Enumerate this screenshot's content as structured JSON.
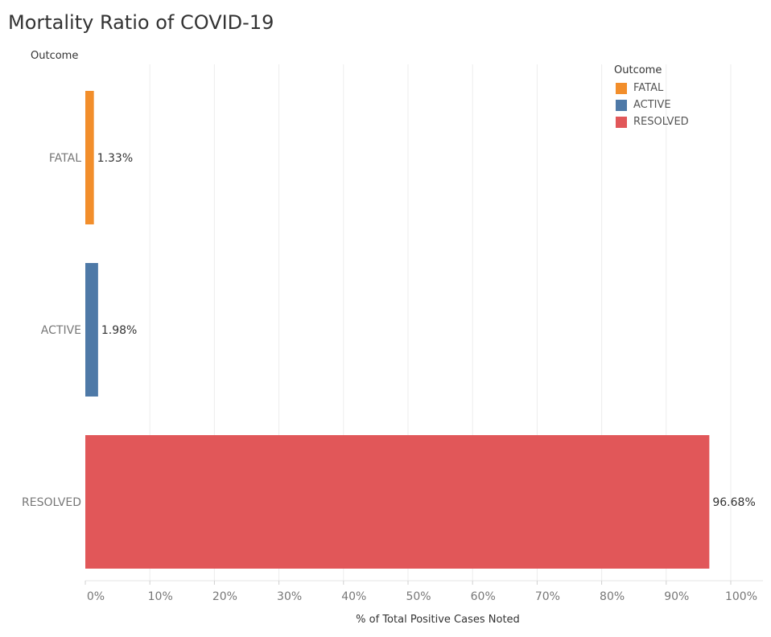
{
  "title": "Mortality Ratio of COVID-19",
  "chart_data": {
    "type": "bar",
    "orientation": "horizontal",
    "title": "Mortality Ratio of COVID-19",
    "row_header": "Outcome",
    "categories": [
      "FATAL",
      "ACTIVE",
      "RESOLVED"
    ],
    "values": [
      1.33,
      1.98,
      96.68
    ],
    "value_labels": [
      "1.33%",
      "1.98%",
      "96.68%"
    ],
    "colors": [
      "#F28E2B",
      "#4E79A7",
      "#E15759"
    ],
    "xlabel": "% of Total Positive Cases Noted",
    "ylabel": "Outcome",
    "xlim": [
      0,
      100
    ],
    "xticks": [
      0,
      10,
      20,
      30,
      40,
      50,
      60,
      70,
      80,
      90,
      100
    ],
    "xtick_labels": [
      "0%",
      "10%",
      "20%",
      "30%",
      "40%",
      "50%",
      "60%",
      "70%",
      "80%",
      "90%",
      "100%"
    ],
    "grid": true,
    "legend": {
      "title": "Outcome",
      "placement": "top-right",
      "entries": [
        {
          "label": "FATAL",
          "color": "#F28E2B"
        },
        {
          "label": "ACTIVE",
          "color": "#4E79A7"
        },
        {
          "label": "RESOLVED",
          "color": "#E15759"
        }
      ]
    }
  }
}
